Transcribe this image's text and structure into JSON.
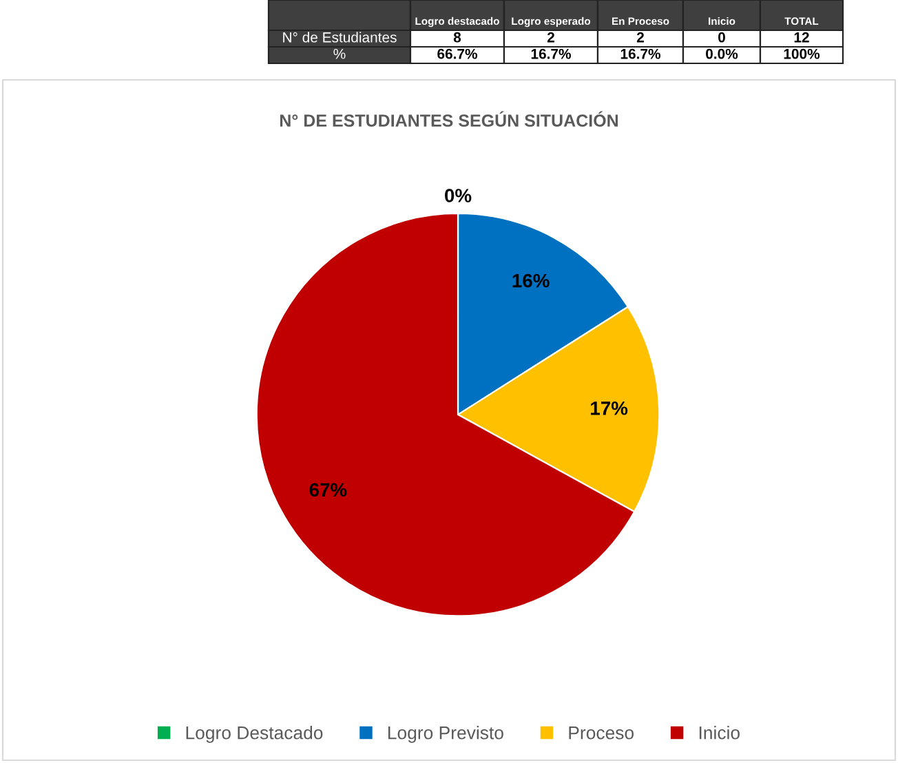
{
  "chart_data": {
    "type": "pie",
    "title": "N° DE ESTUDIANTES SEGÚN SITUACIÓN",
    "categories": [
      "Logro Destacado",
      "Logro Previsto",
      "Proceso",
      "Inicio"
    ],
    "values": [
      0,
      16,
      17,
      67
    ],
    "value_labels": [
      "0%",
      "16%",
      "17%",
      "67%"
    ],
    "colors": [
      "#00b050",
      "#0070c0",
      "#ffc000",
      "#c00000"
    ],
    "legend": "bottom",
    "annotations": [
      "Logro destacado",
      "Logro esperado",
      "En Proceso",
      "Inicio",
      "TOTAL",
      "N° de Estudiantes",
      "8",
      "2",
      "2",
      "0",
      "12",
      "%",
      "66.7%",
      "16.7%",
      "16.7%",
      "0.0%",
      "100%"
    ]
  }
}
